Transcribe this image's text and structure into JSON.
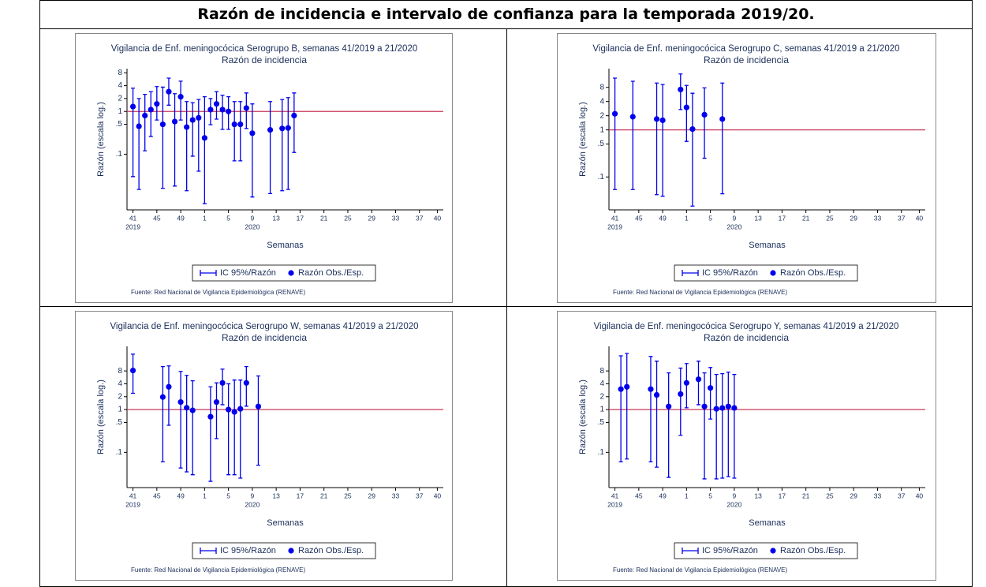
{
  "title": "Razón de incidencia e intervalo de confianza para la temporada 2019/20.",
  "chart_data": [
    {
      "type": "errorbar",
      "title": "Vigilancia de Enf. meningocócica Serogrupo B, semanas 41/2019 a 21/2020",
      "subtitle": "Razón de incidencia",
      "y_label": "Razón (escala log.)",
      "x_label": "Semanas",
      "source": "Fuente: Red Nacional de Vigilancia Epidemiológica (RENAVE)",
      "interval_name": "IC 95%/Razón",
      "log_y": true,
      "xlim": [
        40,
        93
      ],
      "ylim": [
        0.005,
        10
      ],
      "xticks": [
        41,
        {
          "value": 45,
          "label": "45"
        },
        {
          "value": 49,
          "label": "49"
        },
        {
          "value": 53,
          "label": "1"
        },
        {
          "value": 57,
          "label": "5"
        },
        {
          "value": 61,
          "label": "9"
        },
        {
          "value": 65,
          "label": "13"
        },
        {
          "value": 69,
          "label": "17"
        },
        {
          "value": 73,
          "label": "21"
        },
        {
          "value": 77,
          "label": "25"
        },
        {
          "value": 81,
          "label": "29"
        },
        {
          "value": 85,
          "label": "33"
        },
        {
          "value": 89,
          "label": "37"
        },
        {
          "value": 92,
          "label": "40"
        }
      ],
      "x_year_ticks": [
        {
          "value": 41,
          "label": "2019"
        },
        {
          "value": 61,
          "label": "2020"
        }
      ],
      "yticks": [
        8,
        4,
        2,
        1,
        {
          "value": 0.5,
          "label": ".5"
        },
        {
          "value": 0.1,
          "label": ".1"
        }
      ],
      "reference_line": {
        "value": 1,
        "color": "#c8385a"
      },
      "series": [
        {
          "name": "Razón Obs./Esp.",
          "color": "#0000ee",
          "x": [
            41,
            42,
            43,
            44,
            45,
            46,
            47,
            48,
            49,
            50,
            51,
            52,
            53,
            54,
            55,
            56,
            57,
            58,
            59,
            60,
            61,
            64,
            66,
            67,
            68
          ],
          "values": [
            1.3,
            0.45,
            0.8,
            1.1,
            1.5,
            0.5,
            2.9,
            0.58,
            2.2,
            0.43,
            0.63,
            0.71,
            0.24,
            1.1,
            1.5,
            1.1,
            1.0,
            0.5,
            0.5,
            1.2,
            0.31,
            0.37,
            0.4,
            0.41,
            0.8
          ],
          "lower": [
            0.03,
            0.015,
            0.12,
            0.26,
            0.63,
            0.016,
            1.4,
            0.018,
            0.63,
            0.014,
            0.09,
            0.04,
            0.007,
            0.49,
            0.66,
            0.38,
            0.38,
            0.07,
            0.07,
            0.4,
            0.01,
            0.012,
            0.014,
            0.015,
            0.11
          ],
          "upper": [
            3.5,
            2.0,
            2.5,
            2.9,
            3.8,
            3.7,
            6.0,
            2.6,
            5.1,
            1.7,
            1.6,
            1.9,
            2.2,
            2.0,
            2.9,
            2.4,
            2.2,
            1.7,
            1.7,
            2.7,
            1.5,
            1.7,
            1.9,
            2.1,
            2.7
          ]
        }
      ]
    },
    {
      "type": "errorbar",
      "title": "Vigilancia de Enf. meningocócica Serogrupo C, semanas 41/2019 a 21/2020",
      "subtitle": "Razón de incidencia",
      "y_label": "Razón (escala log.)",
      "x_label": "Semanas",
      "source": "Fuente: Red Nacional de Vigilancia Epidemiológica (RENAVE)",
      "interval_name": "IC 95%/Razón",
      "log_y": true,
      "xlim": [
        40,
        93
      ],
      "ylim": [
        0.02,
        20
      ],
      "xticks": [
        41,
        {
          "value": 45,
          "label": "45"
        },
        {
          "value": 49,
          "label": "49"
        },
        {
          "value": 53,
          "label": "1"
        },
        {
          "value": 57,
          "label": "5"
        },
        {
          "value": 61,
          "label": "9"
        },
        {
          "value": 65,
          "label": "13"
        },
        {
          "value": 69,
          "label": "17"
        },
        {
          "value": 73,
          "label": "21"
        },
        {
          "value": 77,
          "label": "25"
        },
        {
          "value": 81,
          "label": "29"
        },
        {
          "value": 85,
          "label": "33"
        },
        {
          "value": 89,
          "label": "37"
        },
        {
          "value": 92,
          "label": "40"
        }
      ],
      "x_year_ticks": [
        {
          "value": 41,
          "label": "2019"
        },
        {
          "value": 61,
          "label": "2020"
        }
      ],
      "yticks": [
        8,
        4,
        2,
        1,
        {
          "value": 0.5,
          "label": ".5"
        },
        {
          "value": 0.1,
          "label": ".1"
        }
      ],
      "reference_line": {
        "value": 1,
        "color": "#c8385a"
      },
      "series": [
        {
          "name": "Razón Obs./Esp.",
          "color": "#0000ee",
          "x": [
            41,
            44,
            48,
            49,
            52,
            53,
            54,
            56,
            59
          ],
          "values": [
            2.2,
            1.9,
            1.7,
            1.6,
            7.2,
            3.0,
            1.04,
            2.1,
            1.7
          ],
          "lower": [
            0.054,
            0.054,
            0.042,
            0.039,
            2.7,
            0.57,
            0.024,
            0.25,
            0.044
          ],
          "upper": [
            12.6,
            10.8,
            9.9,
            9.2,
            15.4,
            8.8,
            6.0,
            7.8,
            9.9
          ]
        }
      ]
    },
    {
      "type": "errorbar",
      "title": "Vigilancia de Enf. meningocócica Serogrupo W, semanas 41/2019 a 21/2020",
      "subtitle": "Razón de incidencia",
      "y_label": "Razón (escala log.)",
      "x_label": "Semanas",
      "source": "Fuente: Red Nacional de Vigilancia Epidemiológica (RENAVE)",
      "interval_name": "IC 95%/Razón",
      "log_y": true,
      "xlim": [
        40,
        93
      ],
      "ylim": [
        0.015,
        30
      ],
      "xticks": [
        41,
        {
          "value": 45,
          "label": "45"
        },
        {
          "value": 49,
          "label": "49"
        },
        {
          "value": 53,
          "label": "1"
        },
        {
          "value": 57,
          "label": "5"
        },
        {
          "value": 61,
          "label": "9"
        },
        {
          "value": 65,
          "label": "13"
        },
        {
          "value": 69,
          "label": "17"
        },
        {
          "value": 73,
          "label": "21"
        },
        {
          "value": 77,
          "label": "25"
        },
        {
          "value": 81,
          "label": "29"
        },
        {
          "value": 85,
          "label": "33"
        },
        {
          "value": 89,
          "label": "37"
        },
        {
          "value": 92,
          "label": "40"
        }
      ],
      "x_year_ticks": [
        {
          "value": 41,
          "label": "2019"
        },
        {
          "value": 61,
          "label": "2020"
        }
      ],
      "yticks": [
        8,
        4,
        2,
        1,
        {
          "value": 0.5,
          "label": ".5"
        },
        {
          "value": 0.1,
          "label": ".1"
        }
      ],
      "reference_line": {
        "value": 1,
        "color": "#c8385a"
      },
      "series": [
        {
          "name": "Razón Obs./Esp.",
          "color": "#0000ee",
          "x": [
            41,
            46,
            47,
            49,
            50,
            51,
            54,
            55,
            56,
            57,
            58,
            59,
            60,
            62
          ],
          "values": [
            8.2,
            1.96,
            3.4,
            1.5,
            1.1,
            0.96,
            0.68,
            1.5,
            4.2,
            1.0,
            0.88,
            1.04,
            4.2,
            1.18
          ],
          "lower": [
            2.4,
            0.06,
            0.43,
            0.043,
            0.035,
            0.03,
            0.021,
            0.21,
            1.3,
            0.03,
            0.03,
            0.025,
            1.2,
            0.05
          ],
          "upper": [
            19.7,
            10.1,
            10.5,
            7.8,
            6.3,
            4.7,
            3.4,
            4.2,
            8.8,
            4.0,
            4.9,
            4.9,
            10.1,
            6.1
          ]
        }
      ]
    },
    {
      "type": "errorbar",
      "title": "Vigilancia de Enf. meningocócica Serogrupo Y, semanas 41/2019 a 21/2020",
      "subtitle": "Razón de incidencia",
      "y_label": "Razón (escala log.)",
      "x_label": "Semanas",
      "source": "Fuente: Red Nacional de Vigilancia Epidemiológica (RENAVE)",
      "interval_name": "IC 95%/Razón",
      "log_y": true,
      "xlim": [
        40,
        93
      ],
      "ylim": [
        0.015,
        30
      ],
      "xticks": [
        41,
        {
          "value": 45,
          "label": "45"
        },
        {
          "value": 49,
          "label": "49"
        },
        {
          "value": 53,
          "label": "1"
        },
        {
          "value": 57,
          "label": "5"
        },
        {
          "value": 61,
          "label": "9"
        },
        {
          "value": 65,
          "label": "13"
        },
        {
          "value": 69,
          "label": "17"
        },
        {
          "value": 73,
          "label": "21"
        },
        {
          "value": 77,
          "label": "25"
        },
        {
          "value": 81,
          "label": "29"
        },
        {
          "value": 85,
          "label": "33"
        },
        {
          "value": 89,
          "label": "37"
        },
        {
          "value": 92,
          "label": "40"
        }
      ],
      "x_year_ticks": [
        {
          "value": 41,
          "label": "2019"
        },
        {
          "value": 61,
          "label": "2020"
        }
      ],
      "yticks": [
        8,
        4,
        2,
        1,
        {
          "value": 0.5,
          "label": ".5"
        },
        {
          "value": 0.1,
          "label": ".1"
        }
      ],
      "reference_line": {
        "value": 1,
        "color": "#c8385a"
      },
      "series": [
        {
          "name": "Razón Obs./Esp.",
          "color": "#0000ee",
          "x": [
            42,
            43,
            47,
            48,
            50,
            52,
            53,
            55,
            56,
            57,
            58,
            59,
            60,
            61
          ],
          "values": [
            3.0,
            3.4,
            3.0,
            2.2,
            1.18,
            2.3,
            4.2,
            5.1,
            1.18,
            3.2,
            1.04,
            1.09,
            1.18,
            1.09
          ],
          "lower": [
            0.06,
            0.07,
            0.06,
            0.045,
            0.026,
            0.25,
            1.1,
            1.3,
            0.024,
            0.6,
            0.024,
            0.025,
            0.027,
            0.025
          ],
          "upper": [
            18,
            20.5,
            17.4,
            13.5,
            7.2,
            9.3,
            11.9,
            13.5,
            7.2,
            9.6,
            6.6,
            6.9,
            7.5,
            6.6
          ]
        }
      ]
    }
  ]
}
